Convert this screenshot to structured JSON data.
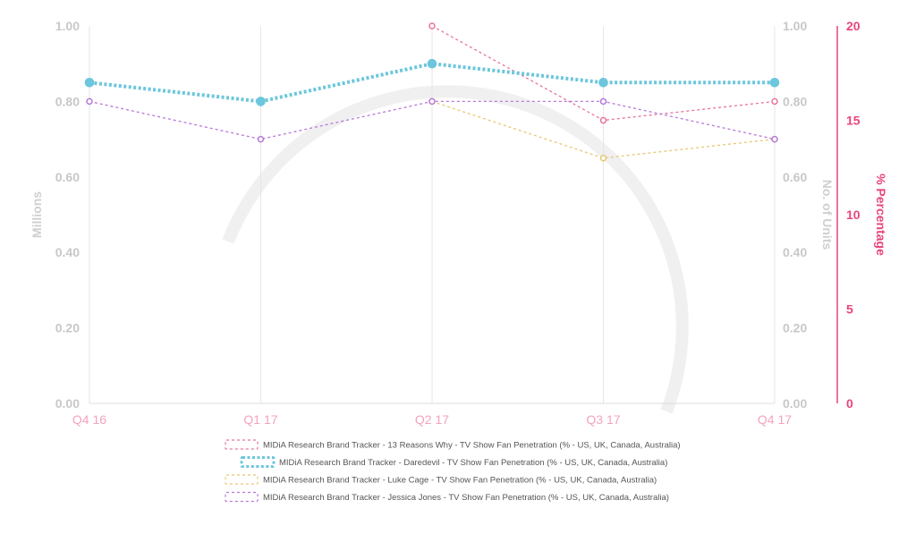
{
  "chart_data": {
    "type": "line",
    "categories": [
      "Q4 16",
      "Q1 17",
      "Q2 17",
      "Q3 17",
      "Q4 17"
    ],
    "axes": {
      "left": {
        "title": "Millions",
        "range": [
          0,
          1
        ],
        "ticks": [
          "0.00",
          "0.20",
          "0.40",
          "0.60",
          "0.80",
          "1.00"
        ]
      },
      "middle": {
        "title": "No. of Units",
        "range": [
          0,
          1
        ],
        "ticks": [
          "0.00",
          "0.20",
          "0.40",
          "0.60",
          "0.80",
          "1.00"
        ]
      },
      "right": {
        "title": "% Percentage",
        "range": [
          0,
          20
        ],
        "ticks": [
          "0",
          "5",
          "10",
          "15",
          "20"
        ]
      }
    },
    "grid": "vertical",
    "legend_position": "bottom",
    "series": [
      {
        "name": "MIDiA Research Brand Tracker - 13 Reasons Why - TV Show Fan Penetration (% - US, UK, Canada, Australia)",
        "axis": "right",
        "color": "#e8739c",
        "style": "dashed-thin",
        "values": [
          null,
          null,
          20,
          15,
          16
        ]
      },
      {
        "name": "MIDiA Research Brand Tracker - Daredevil - TV Show Fan Penetration (% - US, UK, Canada, Australia)",
        "axis": "left",
        "color": "#6cc6dc",
        "style": "dashed-thick",
        "values": [
          0.85,
          0.8,
          0.9,
          0.85,
          0.85
        ]
      },
      {
        "name": "MIDiA Research Brand Tracker - Luke Cage - TV Show Fan Penetration (% - US, UK, Canada, Australia)",
        "axis": "left",
        "color": "#e6c874",
        "style": "dashed-thin",
        "values": [
          null,
          null,
          0.8,
          0.65,
          0.7
        ]
      },
      {
        "name": "MIDiA Research Brand Tracker - Jessica Jones - TV Show Fan Penetration (% - US, UK, Canada, Australia)",
        "axis": "left",
        "color": "#b679d8",
        "style": "dashed-thin",
        "values": [
          0.8,
          0.7,
          0.8,
          0.8,
          0.7
        ]
      }
    ]
  }
}
